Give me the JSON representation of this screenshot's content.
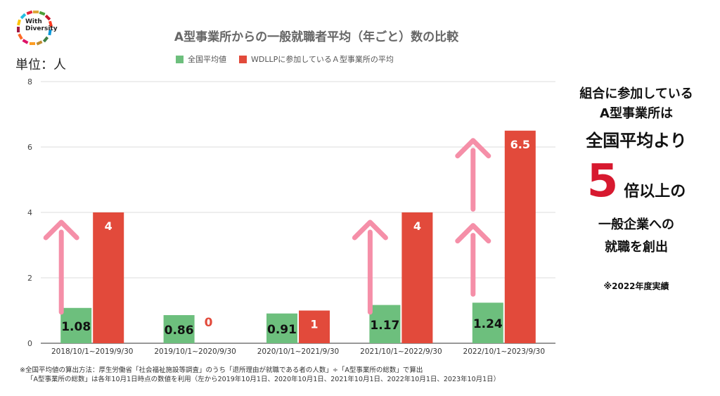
{
  "logo": {
    "line1": "With",
    "line2": "Diversity"
  },
  "unit_label": "単位：人",
  "title": "A型事業所からの一般就職者平均（年ごと）数の比較",
  "legend": [
    {
      "label": "全国平均値",
      "color": "#6dbf7d"
    },
    {
      "label": "WDLLPに参加しているＡ型事業所の平均",
      "color": "#e24a3b"
    }
  ],
  "chart_data": {
    "type": "bar",
    "title": "A型事業所からの一般就職者平均（年ごと）数の比較",
    "ylabel": "単位：人",
    "ylim": [
      0,
      8
    ],
    "yticks": [
      0,
      2,
      4,
      6,
      8
    ],
    "categories": [
      "2018/10/1~2019/9/30",
      "2019/10/1~2020/9/30",
      "2020/10/1~2021/9/30",
      "2021/10/1~2022/9/30",
      "2022/10/1~2023/9/30"
    ],
    "series": [
      {
        "name": "全国平均値",
        "color": "#6dbf7d",
        "values": [
          1.08,
          0.86,
          0.91,
          1.17,
          1.24
        ],
        "labels": [
          "1.08",
          "0.86",
          "0.91",
          "1.17",
          "1.24"
        ]
      },
      {
        "name": "WDLLPに参加しているＡ型事業所の平均",
        "color": "#e24a3b",
        "values": [
          4,
          0,
          1,
          4,
          6.5
        ],
        "labels": [
          "4",
          "0",
          "1",
          "4",
          "6.5"
        ]
      }
    ],
    "grid": true,
    "legend_position": "top"
  },
  "side": {
    "line1": "組合に参加している",
    "line2": "A型事業所は",
    "line3": "全国平均より",
    "big_number": "5",
    "after_number": "倍以上の",
    "line5": "一般企業への",
    "line6": "就職を創出",
    "note": "※2022年度実績"
  },
  "footnote": {
    "line1": "※全国平均値の算出方法：厚生労働省「社会福祉施設等調査」のうち「退所理由が就職である者の人数」÷「A型事業所の総数」で算出",
    "line2": "「A型事業所の総数」は各年10月1日時点の数値を利用（左から2019年10月1日、2020年10月1日、2021年10月1日、2022年10月1日、2023年10月1日）"
  },
  "colors": {
    "green": "#6dbf7d",
    "red": "#e24a3b",
    "arrow": "#f58fa8",
    "accent": "#d7192f"
  }
}
